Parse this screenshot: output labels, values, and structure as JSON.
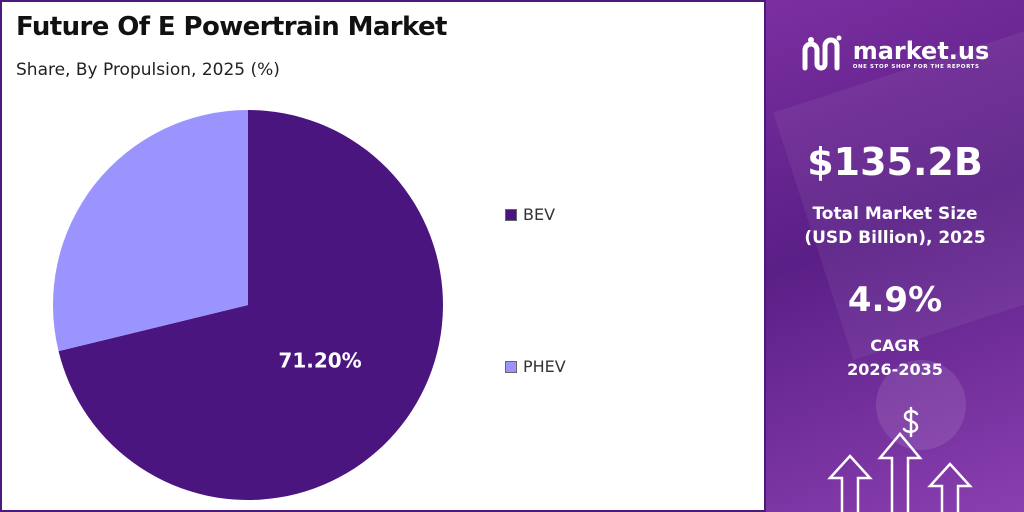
{
  "header": {
    "title": "Future Of E Powertrain Market",
    "subtitle": "Share, By Propulsion, 2025 (%)"
  },
  "chart_data": {
    "type": "pie",
    "title": "Future Of E Powertrain Market",
    "subtitle": "Share, By Propulsion, 2025 (%)",
    "categories": [
      "BEV",
      "PHEV"
    ],
    "values": [
      71.2,
      28.8
    ],
    "data_labels": [
      "71.20%",
      ""
    ],
    "colors": [
      "#4b1580",
      "#9b94ff"
    ],
    "legend_placement": "right"
  },
  "legend": [
    {
      "label": "BEV",
      "color": "#4b1580"
    },
    {
      "label": "PHEV",
      "color": "#9b94ff"
    }
  ],
  "sidebar": {
    "brand": "market.us",
    "tagline": "ONE STOP SHOP FOR THE REPORTS",
    "market_size_value": "$135.2B",
    "market_size_label_line1": "Total Market Size",
    "market_size_label_line2": "(USD Billion), 2025",
    "cagr_value": "4.9%",
    "cagr_label_line1": "CAGR",
    "cagr_label_line2": "2026-2035",
    "icons": [
      "market-us-logo-icon",
      "dollar-icon",
      "growth-arrows-icon"
    ]
  }
}
